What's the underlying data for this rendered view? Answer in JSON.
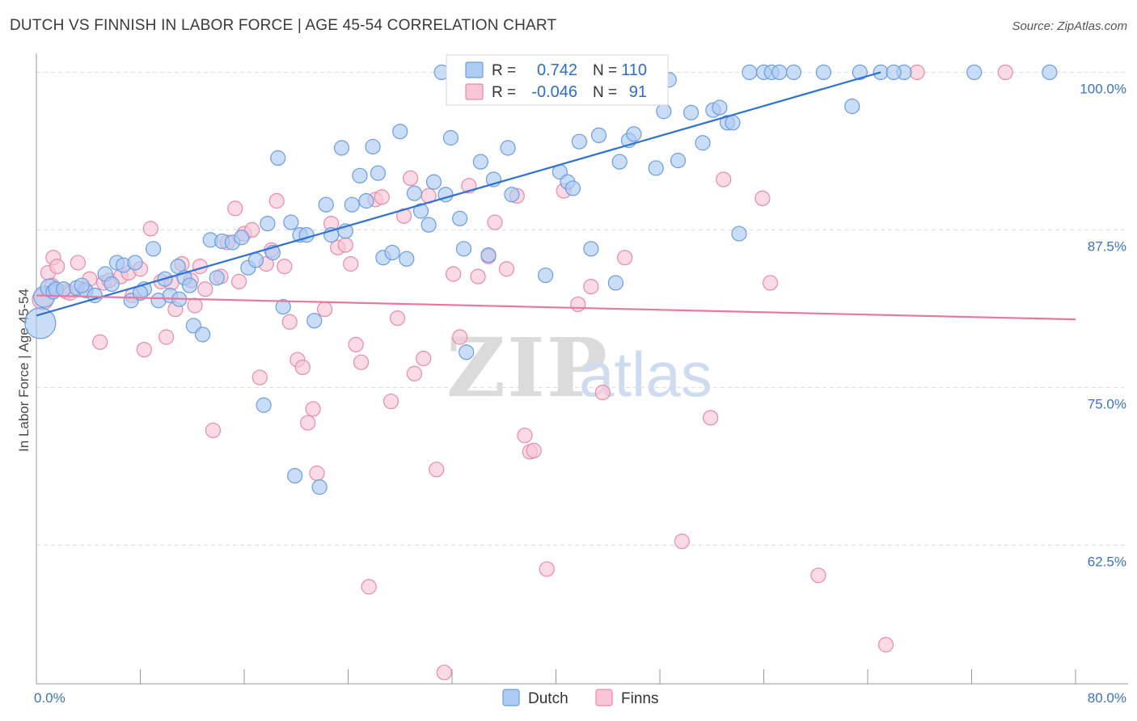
{
  "header": {
    "title": "DUTCH VS FINNISH IN LABOR FORCE | AGE 45-54 CORRELATION CHART",
    "source": "Source: ZipAtlas.com"
  },
  "watermark": {
    "zip": "ZIP",
    "atlas": "atlas"
  },
  "colors": {
    "dutch_fill": "#aecbf3",
    "dutch_stroke": "#6a9de0",
    "dutch_line": "#2f72d4",
    "finns_fill": "#f8c6d6",
    "finns_stroke": "#e88aa8",
    "finns_line": "#e8789f",
    "grid": "#dcdcdc",
    "tick_text": "#3b73c4"
  },
  "stats": {
    "dutch": {
      "r_label": "R =",
      "r_value": "0.742",
      "n_label": "N =",
      "n_value": "110"
    },
    "finns": {
      "r_label": "R =",
      "r_value": "-0.046",
      "n_label": "N =",
      "n_value": "91"
    }
  },
  "legend": {
    "dutch": "Dutch",
    "finns": "Finns"
  },
  "chart_data": {
    "type": "scatter",
    "title": "DUTCH VS FINNISH IN LABOR FORCE | AGE 45-54 CORRELATION CHART",
    "xlabel": "",
    "ylabel": "In Labor Force | Age 45-54",
    "xlim": [
      0,
      80
    ],
    "ylim": [
      51.5,
      101.5
    ],
    "x_tick_labels": [
      {
        "value": 0,
        "label": "0.0%"
      },
      {
        "value": 80,
        "label": "80.0%"
      }
    ],
    "y_tick_labels": [
      {
        "value": 100,
        "label": "100.0%"
      },
      {
        "value": 87.5,
        "label": "87.5%"
      },
      {
        "value": 75,
        "label": "75.0%"
      },
      {
        "value": 62.5,
        "label": "62.5%"
      }
    ],
    "grid": true,
    "series": [
      {
        "name": "Dutch",
        "trend": {
          "x": [
            0.0,
            65.0
          ],
          "y": [
            80.7,
            100.0
          ]
        },
        "points": [
          [
            0.3,
            80.1
          ],
          [
            0.6,
            82.2
          ],
          [
            1.0,
            82.9
          ],
          [
            1.3,
            82.6
          ],
          [
            1.5,
            82.8
          ],
          [
            2.1,
            82.8
          ],
          [
            3.1,
            82.9
          ],
          [
            3.8,
            82.7
          ],
          [
            4.5,
            82.3
          ],
          [
            5.3,
            84.0
          ],
          [
            5.8,
            83.2
          ],
          [
            6.2,
            84.9
          ],
          [
            6.7,
            84.7
          ],
          [
            7.3,
            81.9
          ],
          [
            7.6,
            84.9
          ],
          [
            8.3,
            82.8
          ],
          [
            9.0,
            86.0
          ],
          [
            9.4,
            81.9
          ],
          [
            9.9,
            83.6
          ],
          [
            10.3,
            82.3
          ],
          [
            10.9,
            84.6
          ],
          [
            11.4,
            83.7
          ],
          [
            11.8,
            83.1
          ],
          [
            12.1,
            79.9
          ],
          [
            12.8,
            79.2
          ],
          [
            13.4,
            86.7
          ],
          [
            13.9,
            83.7
          ],
          [
            14.3,
            86.6
          ],
          [
            15.1,
            86.5
          ],
          [
            15.8,
            86.9
          ],
          [
            16.3,
            84.5
          ],
          [
            16.9,
            85.1
          ],
          [
            17.5,
            73.6
          ],
          [
            17.8,
            88.0
          ],
          [
            18.2,
            85.7
          ],
          [
            18.6,
            93.2
          ],
          [
            19.0,
            81.4
          ],
          [
            19.6,
            88.1
          ],
          [
            19.9,
            68.0
          ],
          [
            20.3,
            87.1
          ],
          [
            20.8,
            87.1
          ],
          [
            21.4,
            80.3
          ],
          [
            21.8,
            67.1
          ],
          [
            22.3,
            89.5
          ],
          [
            22.7,
            87.1
          ],
          [
            23.5,
            94.0
          ],
          [
            23.8,
            87.4
          ],
          [
            24.3,
            89.5
          ],
          [
            24.9,
            91.8
          ],
          [
            25.4,
            89.8
          ],
          [
            25.9,
            94.1
          ],
          [
            26.3,
            92.0
          ],
          [
            26.7,
            85.3
          ],
          [
            27.4,
            85.7
          ],
          [
            28.0,
            95.3
          ],
          [
            28.5,
            85.2
          ],
          [
            29.1,
            90.4
          ],
          [
            29.6,
            89.0
          ],
          [
            30.2,
            87.9
          ],
          [
            30.6,
            91.3
          ],
          [
            31.2,
            100.0
          ],
          [
            31.5,
            90.3
          ],
          [
            31.9,
            94.8
          ],
          [
            32.6,
            88.4
          ],
          [
            32.9,
            86.0
          ],
          [
            33.1,
            77.8
          ],
          [
            34.2,
            92.9
          ],
          [
            34.8,
            85.5
          ],
          [
            35.2,
            91.5
          ],
          [
            36.3,
            94.0
          ],
          [
            36.6,
            90.3
          ],
          [
            39.2,
            83.9
          ],
          [
            40.3,
            92.1
          ],
          [
            40.9,
            91.3
          ],
          [
            41.3,
            90.8
          ],
          [
            41.8,
            94.5
          ],
          [
            42.7,
            86.0
          ],
          [
            43.3,
            95.0
          ],
          [
            44.6,
            83.3
          ],
          [
            44.9,
            92.9
          ],
          [
            45.6,
            94.6
          ],
          [
            46.0,
            95.1
          ],
          [
            47.3,
            100.0
          ],
          [
            47.7,
            92.4
          ],
          [
            48.3,
            96.9
          ],
          [
            48.7,
            99.4
          ],
          [
            49.4,
            93.0
          ],
          [
            50.4,
            96.8
          ],
          [
            51.3,
            94.4
          ],
          [
            52.1,
            97.0
          ],
          [
            52.6,
            97.2
          ],
          [
            53.2,
            96.0
          ],
          [
            53.6,
            96.0
          ],
          [
            54.1,
            87.2
          ],
          [
            54.9,
            100.0
          ],
          [
            56.0,
            100.0
          ],
          [
            56.6,
            100.0
          ],
          [
            57.2,
            100.0
          ],
          [
            58.3,
            100.0
          ],
          [
            60.6,
            100.0
          ],
          [
            62.8,
            97.3
          ],
          [
            63.4,
            100.0
          ],
          [
            65.0,
            100.0
          ],
          [
            66.8,
            100.0
          ],
          [
            66.0,
            100.0
          ],
          [
            72.2,
            100.0
          ],
          [
            78.0,
            100.0
          ],
          [
            11.0,
            82.0
          ],
          [
            3.5,
            83.1
          ],
          [
            8.0,
            82.5
          ]
        ],
        "sizes": {
          "0": 30,
          "1": 18,
          "2": 14
        }
      },
      {
        "name": "Finns",
        "trend": {
          "x": [
            0.0,
            80.0
          ],
          "y": [
            82.3,
            80.4
          ]
        },
        "points": [
          [
            0.5,
            82.0
          ],
          [
            0.9,
            84.1
          ],
          [
            1.2,
            83.1
          ],
          [
            1.3,
            85.3
          ],
          [
            1.6,
            84.6
          ],
          [
            2.3,
            82.6
          ],
          [
            2.6,
            82.5
          ],
          [
            3.2,
            84.9
          ],
          [
            3.7,
            82.8
          ],
          [
            4.1,
            83.6
          ],
          [
            4.9,
            78.6
          ],
          [
            5.2,
            83.3
          ],
          [
            5.6,
            83.5
          ],
          [
            6.5,
            83.8
          ],
          [
            7.1,
            84.1
          ],
          [
            7.4,
            82.3
          ],
          [
            8.0,
            84.4
          ],
          [
            8.3,
            78.0
          ],
          [
            8.8,
            87.6
          ],
          [
            9.6,
            83.4
          ],
          [
            10.0,
            79.0
          ],
          [
            10.4,
            83.3
          ],
          [
            10.7,
            81.2
          ],
          [
            11.2,
            84.8
          ],
          [
            11.9,
            83.5
          ],
          [
            12.2,
            81.5
          ],
          [
            12.6,
            84.6
          ],
          [
            13.0,
            82.8
          ],
          [
            13.6,
            71.6
          ],
          [
            14.2,
            83.8
          ],
          [
            14.7,
            86.5
          ],
          [
            15.3,
            89.2
          ],
          [
            15.6,
            83.4
          ],
          [
            16.0,
            87.2
          ],
          [
            16.6,
            87.5
          ],
          [
            17.2,
            75.8
          ],
          [
            17.7,
            84.8
          ],
          [
            18.1,
            85.9
          ],
          [
            18.5,
            89.8
          ],
          [
            19.1,
            84.6
          ],
          [
            19.5,
            80.2
          ],
          [
            20.1,
            77.2
          ],
          [
            20.5,
            76.6
          ],
          [
            20.9,
            72.2
          ],
          [
            21.3,
            73.3
          ],
          [
            21.6,
            68.2
          ],
          [
            22.2,
            81.2
          ],
          [
            22.7,
            88.0
          ],
          [
            23.2,
            86.1
          ],
          [
            23.8,
            86.3
          ],
          [
            24.2,
            84.8
          ],
          [
            24.6,
            78.4
          ],
          [
            25.0,
            77.0
          ],
          [
            25.6,
            59.2
          ],
          [
            26.1,
            89.9
          ],
          [
            26.6,
            90.1
          ],
          [
            27.3,
            73.9
          ],
          [
            27.8,
            80.5
          ],
          [
            28.3,
            88.6
          ],
          [
            28.8,
            91.6
          ],
          [
            29.1,
            76.1
          ],
          [
            29.8,
            77.3
          ],
          [
            30.2,
            90.2
          ],
          [
            30.8,
            68.5
          ],
          [
            31.4,
            52.4
          ],
          [
            32.1,
            84.0
          ],
          [
            32.6,
            79.0
          ],
          [
            33.3,
            91.0
          ],
          [
            34.0,
            83.8
          ],
          [
            34.8,
            85.4
          ],
          [
            35.3,
            88.1
          ],
          [
            36.2,
            84.4
          ],
          [
            37.0,
            90.2
          ],
          [
            37.6,
            71.2
          ],
          [
            38.0,
            69.9
          ],
          [
            38.3,
            70.0
          ],
          [
            39.3,
            60.6
          ],
          [
            40.6,
            90.6
          ],
          [
            41.7,
            81.6
          ],
          [
            42.7,
            83.0
          ],
          [
            43.6,
            74.6
          ],
          [
            45.3,
            85.3
          ],
          [
            49.7,
            62.8
          ],
          [
            51.9,
            72.6
          ],
          [
            52.9,
            91.5
          ],
          [
            55.9,
            90.0
          ],
          [
            56.5,
            83.3
          ],
          [
            60.2,
            60.1
          ],
          [
            67.8,
            100.0
          ],
          [
            65.4,
            54.6
          ],
          [
            74.6,
            100.0
          ]
        ],
        "sizes": {
          "0": 18
        }
      }
    ]
  }
}
